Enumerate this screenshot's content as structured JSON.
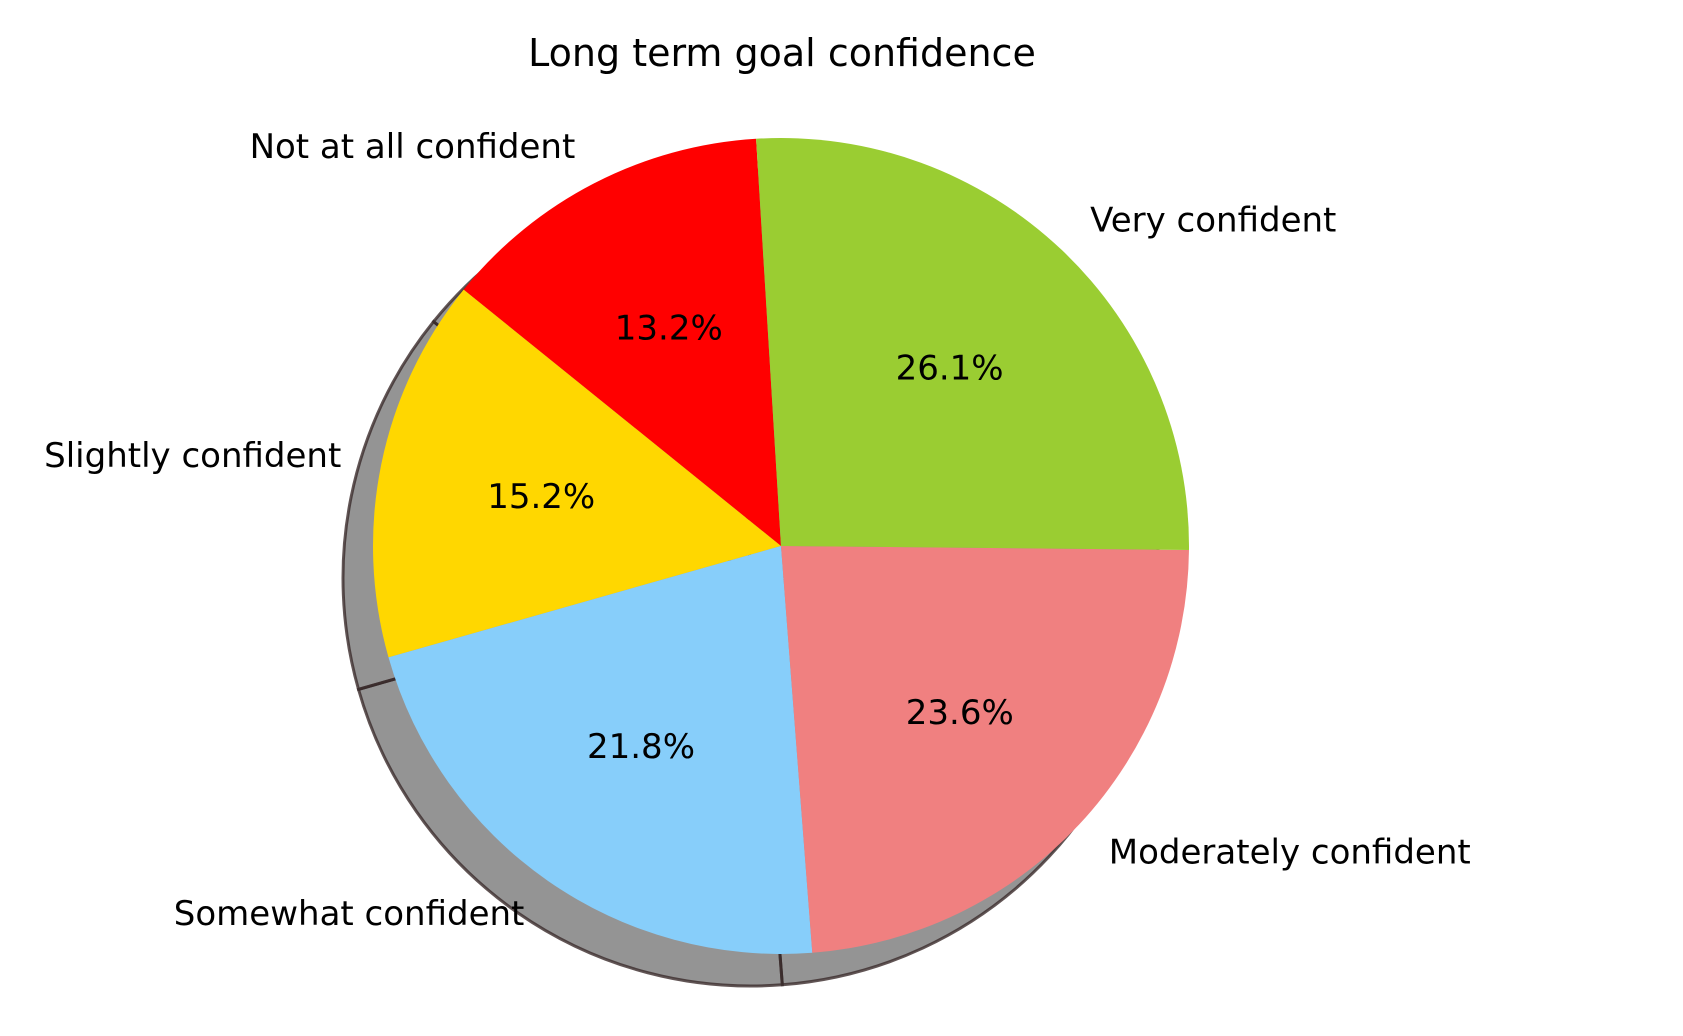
{
  "chart_data": {
    "type": "pie",
    "title": "Long term goal confidence",
    "categories": [
      "Not at all confident",
      "Slightly confident",
      "Somewhat confident",
      "Moderately confident",
      "Very confident"
    ],
    "values": [
      13.2,
      15.2,
      21.8,
      23.6,
      26.1
    ],
    "percent_labels": [
      "13.2%",
      "15.2%",
      "21.8%",
      "23.6%",
      "26.1%"
    ],
    "colors": [
      "#ff0000",
      "#ffd700",
      "#87cefa",
      "#f08080",
      "#9acd32"
    ],
    "shadow": true,
    "legend": "none"
  }
}
